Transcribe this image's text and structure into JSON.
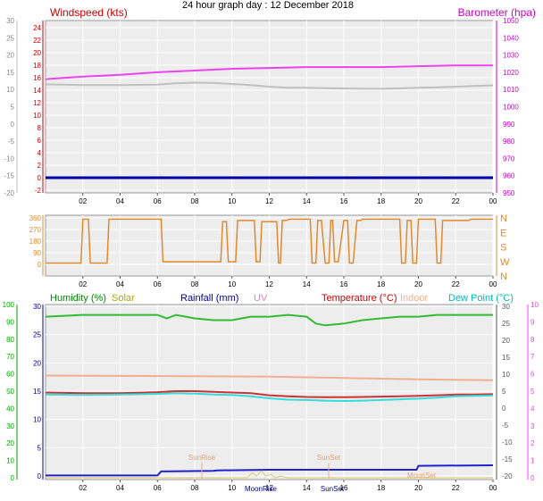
{
  "chart_data": [
    {
      "type": "line",
      "title": "24 hour graph day : 12 December 2018",
      "left_axis": {
        "label": "Windspeed (kts)",
        "ticks": [
          "-2",
          "0",
          "2",
          "4",
          "6",
          "8",
          "10",
          "12",
          "14",
          "16",
          "18",
          "20",
          "22",
          "24"
        ],
        "ylim": [
          -2,
          25
        ],
        "color": "#cc0000"
      },
      "outer_left_axis": {
        "ticks": [
          "-20",
          "-15",
          "-10",
          "-5",
          "0",
          "5",
          "10",
          "15",
          "20",
          "25",
          "30"
        ],
        "ylim": [
          -20,
          30
        ],
        "color": "#888888"
      },
      "right_axis": {
        "label": "Barometer (hpa)",
        "ticks": [
          "950",
          "960",
          "970",
          "980",
          "990",
          "1000",
          "1010",
          "1020",
          "1030",
          "1040",
          "1050"
        ],
        "ylim": [
          950,
          1050
        ],
        "color": "#cc00cc"
      },
      "x_ticks": [
        "02",
        "04",
        "06",
        "08",
        "10",
        "12",
        "14",
        "16",
        "18",
        "20",
        "22",
        "00"
      ],
      "xlim": [
        0,
        24
      ],
      "series": [
        {
          "name": "Barometer (hpa)",
          "axis": "right",
          "color": "#ee44ee",
          "x": [
            0,
            2,
            4,
            6,
            8,
            10,
            12,
            14,
            16,
            18,
            20,
            22,
            24
          ],
          "y": [
            1016,
            1017.5,
            1018.5,
            1020,
            1021,
            1022,
            1022.5,
            1023,
            1023,
            1023,
            1023.5,
            1024,
            1024
          ]
        },
        {
          "name": "",
          "axis": "outer",
          "color": "#c0c0c0",
          "x": [
            0,
            2,
            4,
            6,
            7,
            8,
            9,
            10,
            11,
            12,
            13,
            14,
            15,
            16,
            17,
            18,
            19,
            20,
            21,
            22,
            23,
            24
          ],
          "y": [
            11.5,
            11.3,
            11.3,
            11.4,
            11.8,
            12,
            11.9,
            11.6,
            11.3,
            10.8,
            10.5,
            10.5,
            10.4,
            10.3,
            10.2,
            10.2,
            10.3,
            10.5,
            10.6,
            10.8,
            11.0,
            11.2
          ]
        },
        {
          "name": "",
          "axis": "left",
          "color": "#0000aa",
          "x": [
            0,
            24
          ],
          "y": [
            0,
            0
          ]
        }
      ]
    },
    {
      "type": "line",
      "title": "",
      "left_ticks": [
        "0",
        "90",
        "180",
        "270",
        "360"
      ],
      "ylim": [
        0,
        360
      ],
      "right_labels": [
        "N",
        "E",
        "S",
        "W",
        "N"
      ],
      "x_ticks": [
        "02",
        "04",
        "06",
        "08",
        "10",
        "12",
        "14",
        "16",
        "18",
        "20",
        "22",
        "00"
      ],
      "xlim": [
        0,
        24
      ],
      "series": [
        {
          "name": "",
          "color": "#e08a30",
          "x": [
            0,
            1.9,
            2,
            2.3,
            2.4,
            3.3,
            3.4,
            6.2,
            6.3,
            9.4,
            9.5,
            9.7,
            9.8,
            10.2,
            10.3,
            11.2,
            11.3,
            11.5,
            11.6,
            12.4,
            12.5,
            12.6,
            12.7,
            12.9,
            13.1,
            14.2,
            14.3,
            14.5,
            14.6,
            14.8,
            15.0,
            15.2,
            15.3,
            15.4,
            15.5,
            15.7,
            16.0,
            16.2,
            16.3,
            16.5,
            16.7,
            16.9,
            17.0,
            19.0,
            19.1,
            19.3,
            19.4,
            19.6,
            19.7,
            19.9,
            20.0,
            20.9,
            21.0,
            21.2,
            21.3,
            22.7,
            22.8,
            24
          ],
          "y": [
            10,
            10,
            350,
            350,
            10,
            10,
            350,
            350,
            20,
            20,
            330,
            330,
            20,
            20,
            340,
            340,
            20,
            20,
            330,
            330,
            10,
            10,
            340,
            340,
            350,
            350,
            10,
            10,
            340,
            340,
            10,
            10,
            340,
            340,
            20,
            20,
            340,
            340,
            10,
            10,
            340,
            340,
            350,
            350,
            10,
            10,
            340,
            340,
            10,
            10,
            350,
            350,
            10,
            10,
            340,
            340,
            350,
            350
          ]
        }
      ]
    },
    {
      "type": "line",
      "title": "",
      "legend": [
        {
          "label": "Humidity (%)",
          "color": "#008800"
        },
        {
          "label": "Solar",
          "color": "#aaaa00"
        },
        {
          "label": "Rainfall (mm)",
          "color": "#000099"
        },
        {
          "label": "UV",
          "color": "#cc88cc"
        },
        {
          "label": "Temperature (°C)",
          "color": "#cc0000"
        },
        {
          "label": "Indoor",
          "color": "#f0b090"
        },
        {
          "label": "Dew Point (°C)",
          "color": "#00bbbb"
        }
      ],
      "humidity_axis": {
        "ticks": [
          "0",
          "10",
          "20",
          "30",
          "40",
          "50",
          "60",
          "70",
          "80",
          "90",
          "100"
        ],
        "ylim": [
          0,
          100
        ],
        "color": "#00aa00"
      },
      "rain_axis": {
        "ticks": [
          "0",
          "5",
          "10",
          "15",
          "20",
          "25",
          "30"
        ],
        "ylim": [
          0,
          30
        ],
        "color": "#000088"
      },
      "temp_axis": {
        "ticks": [
          "-20",
          "-15",
          "-10",
          "-5",
          "0",
          "5",
          "10",
          "15",
          "20",
          "25",
          "30"
        ],
        "ylim": [
          -20,
          30
        ],
        "color": "#555555"
      },
      "uv_axis": {
        "ticks": [
          "0",
          "1",
          "2",
          "3",
          "4",
          "5",
          "6",
          "7",
          "8",
          "9",
          "10"
        ],
        "ylim": [
          0,
          10
        ],
        "color": "#ee44ee"
      },
      "x_ticks": [
        "02",
        "04",
        "06",
        "08",
        "10",
        "12",
        "14",
        "16",
        "18",
        "20",
        "22",
        "00"
      ],
      "xlim": [
        0,
        24
      ],
      "annotations": [
        "SunRise",
        "SunSet",
        "MoonRise",
        "SunSet",
        "MoonSet"
      ],
      "series": [
        {
          "name": "Humidity (%)",
          "axis": "humidity",
          "color": "#33bb33",
          "x": [
            0,
            2,
            4,
            6,
            6.5,
            7,
            8,
            9,
            10,
            11,
            12,
            13,
            14,
            14.5,
            15,
            16,
            17,
            18,
            19,
            20,
            21,
            22,
            23,
            24
          ],
          "y": [
            93,
            94,
            94,
            94,
            92,
            94,
            92,
            91,
            91,
            93,
            93,
            94,
            93,
            89,
            88,
            89,
            91,
            92,
            93,
            93,
            94,
            94,
            94,
            94
          ]
        },
        {
          "name": "Indoor",
          "axis": "temp",
          "color": "#f0b090",
          "x": [
            0,
            4,
            8,
            12,
            16,
            20,
            24
          ],
          "y": [
            9.6,
            9.5,
            9.4,
            9.3,
            8.9,
            8.5,
            8.2
          ]
        },
        {
          "name": "Temperature (°C)",
          "axis": "temp",
          "color": "#cc3333",
          "x": [
            0,
            2,
            4,
            6,
            7,
            8,
            9,
            10,
            11,
            12,
            13,
            14,
            15,
            16,
            17,
            18,
            19,
            20,
            21,
            22,
            23,
            24
          ],
          "y": [
            4.6,
            4.4,
            4.4,
            4.7,
            5.0,
            5.0,
            4.8,
            4.6,
            4.4,
            3.8,
            3.5,
            3.3,
            3.2,
            3.2,
            3.3,
            3.4,
            3.5,
            3.6,
            3.8,
            4.0,
            4.0,
            4.1
          ]
        },
        {
          "name": "Dew Point (°C)",
          "axis": "temp",
          "color": "#33dddd",
          "x": [
            0,
            2,
            4,
            6,
            7,
            8,
            9,
            10,
            11,
            12,
            13,
            14,
            15,
            16,
            17,
            18,
            19,
            20,
            21,
            22,
            23,
            24
          ],
          "y": [
            4.0,
            3.9,
            4.0,
            4.2,
            4.4,
            4.3,
            4.0,
            3.9,
            3.5,
            2.9,
            2.5,
            2.4,
            2.2,
            2.1,
            2.2,
            2.4,
            2.6,
            2.8,
            3.1,
            3.5,
            3.6,
            3.7
          ]
        },
        {
          "name": "Rainfall (mm)",
          "axis": "rain",
          "color": "#2222cc",
          "x": [
            0,
            6,
            6.2,
            9,
            9.2,
            12,
            18,
            19.9,
            20,
            24
          ],
          "y": [
            0.1,
            0.1,
            0.8,
            0.9,
            1.0,
            1.1,
            1.1,
            1.1,
            1.8,
            1.9
          ]
        },
        {
          "name": "Solar",
          "axis": "humidity",
          "color": "#ddcc66",
          "x": [
            0,
            10.8,
            11.1,
            11.3,
            11.6,
            11.8,
            12.1,
            12.3,
            12.6,
            13.0,
            24
          ],
          "y": [
            0,
            0,
            3,
            1,
            4,
            1,
            2,
            0,
            1,
            0,
            0
          ]
        }
      ]
    }
  ]
}
